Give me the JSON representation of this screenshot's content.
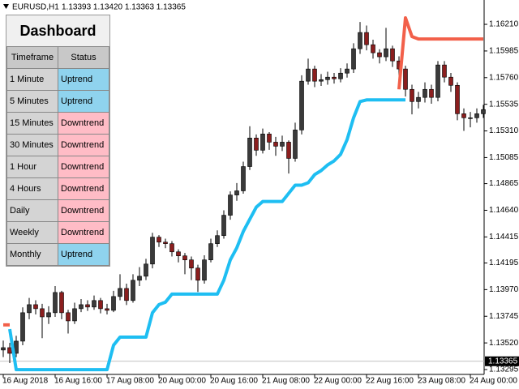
{
  "header": {
    "symbol": "EURUSD,H1",
    "ohlc": "1.13393 1.13420 1.13363 1.13365"
  },
  "dashboard": {
    "title": "Dashboard",
    "columns": [
      "Timeframe",
      "Status"
    ],
    "rows": [
      {
        "timeframe": "1 Minute",
        "status": "Uptrend",
        "color": "#8fd3ee"
      },
      {
        "timeframe": "5 Minutes",
        "status": "Uptrend",
        "color": "#8fd3ee"
      },
      {
        "timeframe": "15 Minutes",
        "status": "Downtrend",
        "color": "#ffbcc6"
      },
      {
        "timeframe": "30 Minutes",
        "status": "Downtrend",
        "color": "#ffbcc6"
      },
      {
        "timeframe": "1 Hour",
        "status": "Downtrend",
        "color": "#ffbcc6"
      },
      {
        "timeframe": "4 Hours",
        "status": "Downtrend",
        "color": "#ffbcc6"
      },
      {
        "timeframe": "Daily",
        "status": "Downtrend",
        "color": "#ffbcc6"
      },
      {
        "timeframe": "Weekly",
        "status": "Downtrend",
        "color": "#ffbcc6"
      },
      {
        "timeframe": "Monthly",
        "status": "Uptrend",
        "color": "#8fd3ee"
      }
    ]
  },
  "chart_data": {
    "type": "candlestick",
    "categories": [
      "16 Aug 2018",
      null,
      null,
      null,
      null,
      null,
      null,
      null,
      "16 Aug 16:00",
      null,
      null,
      null,
      null,
      null,
      null,
      null,
      "17 Aug 08:00",
      null,
      null,
      null,
      null,
      null,
      null,
      null,
      "20 Aug 00:00",
      null,
      null,
      null,
      null,
      null,
      null,
      null,
      "20 Aug 16:00",
      null,
      null,
      null,
      null,
      null,
      null,
      null,
      "21 Aug 08:00",
      null,
      null,
      null,
      null,
      null,
      null,
      null,
      "22 Aug 00:00",
      null,
      null,
      null,
      null,
      null,
      null,
      null,
      "22 Aug 16:00",
      null,
      null,
      null,
      null,
      null,
      null,
      null,
      "23 Aug 08:00",
      null,
      null,
      null,
      null,
      null,
      null,
      null,
      "24 Aug 00:00",
      null,
      null
    ],
    "open": [
      1.1346,
      1.1348,
      1.13432,
      1.13535,
      1.13775,
      1.13843,
      1.13809,
      1.1374,
      1.13775,
      1.13946,
      1.13775,
      1.13706,
      1.13809,
      1.13843,
      1.13823,
      1.13878,
      1.13809,
      1.13795,
      1.13912,
      1.1398,
      1.13878,
      1.14049,
      1.14083,
      1.14186,
      1.14413,
      1.14371,
      1.14358,
      1.14289,
      1.14255,
      1.14221,
      1.14152,
      1.14049,
      1.14221,
      1.14358,
      1.14426,
      1.14598,
      1.14769,
      1.14804,
      1.15009,
      1.1525,
      1.15147,
      1.15284,
      1.15215,
      1.15181,
      1.15215,
      1.15078,
      1.15318,
      1.1573,
      1.15833,
      1.1573,
      1.15743,
      1.15764,
      1.1575,
      1.15798,
      1.15833,
      1.16004,
      1.16141,
      1.16038,
      1.1597,
      1.15936,
      1.16004,
      1.15901,
      1.15833,
      1.15661,
      1.15558,
      1.15593,
      1.15661,
      1.15593,
      1.15867,
      1.15764,
      1.15695,
      1.15455,
      1.15421,
      1.15421,
      1.15455
    ],
    "high": [
      1.1354,
      1.1352,
      1.1358,
      1.1382,
      1.139,
      1.1388,
      1.1385,
      1.1383,
      1.14,
      1.1396,
      1.138,
      1.1386,
      1.1389,
      1.1388,
      1.1392,
      1.139,
      1.1385,
      1.1396,
      1.141,
      1.1402,
      1.141,
      1.1416,
      1.1423,
      1.1445,
      1.1443,
      1.144,
      1.1438,
      1.1431,
      1.1428,
      1.1425,
      1.1418,
      1.1426,
      1.144,
      1.1447,
      1.1464,
      1.148,
      1.1487,
      1.1505,
      1.1535,
      1.1528,
      1.1533,
      1.153,
      1.1526,
      1.1527,
      1.1523,
      1.1538,
      1.1578,
      1.1592,
      1.1586,
      1.1579,
      1.1581,
      1.158,
      1.1584,
      1.1588,
      1.1605,
      1.1623,
      1.162,
      1.1608,
      1.16,
      1.1618,
      1.1603,
      1.1594,
      1.1586,
      1.157,
      1.1564,
      1.1572,
      1.157,
      1.159,
      1.159,
      1.158,
      1.1572,
      1.155,
      1.1547,
      1.155,
      1.1553
    ],
    "low": [
      1.134,
      1.1335,
      1.134,
      1.135,
      1.1372,
      1.1376,
      1.1356,
      1.1368,
      1.1374,
      1.1372,
      1.136,
      1.1368,
      1.1378,
      1.1379,
      1.138,
      1.1377,
      1.1376,
      1.1378,
      1.1388,
      1.1384,
      1.1386,
      1.14,
      1.1405,
      1.1415,
      1.1433,
      1.1432,
      1.1425,
      1.142,
      1.141,
      1.1405,
      1.1395,
      1.1402,
      1.142,
      1.1433,
      1.144,
      1.1456,
      1.1472,
      1.1478,
      1.1498,
      1.151,
      1.1512,
      1.1515,
      1.151,
      1.1514,
      1.1495,
      1.1505,
      1.1528,
      1.157,
      1.1568,
      1.1569,
      1.157,
      1.1571,
      1.1572,
      1.1576,
      1.158,
      1.1596,
      1.1599,
      1.1592,
      1.1588,
      1.159,
      1.1585,
      1.1576,
      1.156,
      1.1545,
      1.155,
      1.1555,
      1.1554,
      1.1556,
      1.1572,
      1.1564,
      1.154,
      1.1531,
      1.1534,
      1.1538,
      1.1542
    ],
    "close": [
      1.1348,
      1.13432,
      1.13535,
      1.13775,
      1.13843,
      1.13809,
      1.1374,
      1.13775,
      1.13946,
      1.13775,
      1.13706,
      1.13809,
      1.13843,
      1.13823,
      1.13878,
      1.13809,
      1.13795,
      1.13912,
      1.1398,
      1.13878,
      1.14049,
      1.14083,
      1.14186,
      1.14413,
      1.14371,
      1.14358,
      1.14289,
      1.14255,
      1.14221,
      1.14152,
      1.14049,
      1.14221,
      1.14358,
      1.14426,
      1.14598,
      1.14769,
      1.14804,
      1.15009,
      1.1525,
      1.15147,
      1.15284,
      1.15215,
      1.15181,
      1.15215,
      1.15078,
      1.15318,
      1.1573,
      1.15833,
      1.1573,
      1.15743,
      1.15764,
      1.1575,
      1.15798,
      1.15833,
      1.16004,
      1.16141,
      1.16038,
      1.1597,
      1.15936,
      1.16004,
      1.15901,
      1.15833,
      1.15661,
      1.15558,
      1.15593,
      1.15661,
      1.15593,
      1.15867,
      1.15764,
      1.15695,
      1.15455,
      1.15421,
      1.15421,
      1.15455,
      1.1549
    ],
    "up_color": "#3a3a3a",
    "down_color": "#8b1e1e",
    "lines": [
      {
        "color": "#f2604a",
        "values": [
          1.13672,
          1.13672,
          null,
          null,
          null,
          null,
          null,
          null,
          null,
          null,
          null,
          null,
          null,
          null,
          null,
          null,
          null,
          null,
          null,
          null,
          null,
          null,
          null,
          null,
          null,
          null,
          null,
          null,
          null,
          null,
          null,
          null,
          null,
          null,
          null,
          null,
          null,
          null,
          null,
          null,
          null,
          null,
          null,
          null,
          null,
          null,
          null,
          null,
          null,
          null,
          null,
          null,
          null,
          null,
          null,
          null,
          null,
          null,
          null,
          null,
          null,
          1.15661,
          1.16265,
          1.16107,
          1.16086,
          1.16086,
          1.16086,
          1.16086,
          1.16086,
          1.16086,
          1.16086,
          1.16086,
          1.16086,
          1.16086,
          1.16086
        ]
      },
      {
        "color": "#1ebef2",
        "values": [
          null,
          1.13637,
          1.13294,
          1.13294,
          1.13294,
          1.13294,
          1.13294,
          1.13294,
          1.13294,
          1.13294,
          1.13294,
          1.13294,
          1.13294,
          1.13294,
          1.13294,
          1.13294,
          1.13294,
          1.135,
          1.13569,
          1.13569,
          1.13569,
          1.13569,
          1.13569,
          1.13775,
          1.13843,
          1.13864,
          1.13932,
          1.13932,
          1.13932,
          1.13932,
          1.13932,
          1.13932,
          1.13932,
          1.13932,
          1.14049,
          1.14221,
          1.14323,
          1.14461,
          1.14564,
          1.14666,
          1.14714,
          1.14714,
          1.14714,
          1.14714,
          1.14783,
          1.14852,
          1.14852,
          1.14872,
          1.14941,
          1.14975,
          1.15023,
          1.15057,
          1.15112,
          1.15236,
          1.15421,
          1.15558,
          1.15572,
          1.15572,
          1.15572,
          1.15572,
          1.15572,
          1.15572,
          1.15572,
          null,
          null,
          null,
          null,
          null,
          null,
          null,
          null,
          null,
          null,
          null,
          null
        ]
      }
    ],
    "ylim": [
      1.13254,
      1.16306
    ],
    "yticks": [
      {
        "value": 1.1621,
        "label": "1.16210"
      },
      1.15985,
      {
        "value": 1.1576,
        "label": "1.15760"
      },
      1.15535,
      {
        "value": 1.1531,
        "label": "1.15310"
      },
      1.15085,
      1.14865,
      {
        "value": 1.1464,
        "label": "1.14640"
      },
      1.14415,
      1.14195,
      {
        "value": 1.1397,
        "label": "1.13970"
      },
      1.13745,
      {
        "value": 1.1352,
        "label": "1.13520"
      },
      1.13295
    ],
    "current_price": 1.13365
  }
}
